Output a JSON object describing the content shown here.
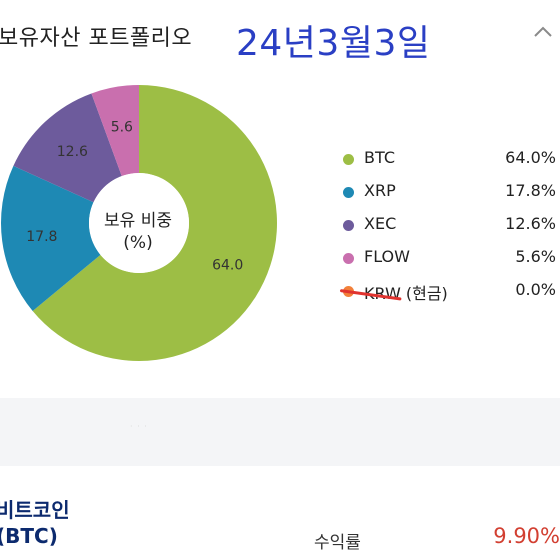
{
  "header": {
    "title": "보유자산 포트폴리오",
    "date_annotation": "24년3월3일",
    "collapse_icon": "chevron-up-icon"
  },
  "chart_data": {
    "type": "pie",
    "center_label": [
      "보유 비중",
      "(%)"
    ],
    "categories": [
      "BTC",
      "XRP",
      "XEC",
      "FLOW",
      "KRW (현금)"
    ],
    "values": [
      64.0,
      17.8,
      12.6,
      5.6,
      0.0
    ],
    "slice_labels": [
      "64.0",
      "17.8",
      "12.6",
      "5.6",
      ""
    ],
    "colors": [
      "#9dbe45",
      "#1e89b4",
      "#6d5b9c",
      "#c96fae",
      "#f2803a"
    ]
  },
  "legend": [
    {
      "name": "BTC",
      "pct": "64.0%",
      "color": "#9dbe45"
    },
    {
      "name": "XRP",
      "pct": "17.8%",
      "color": "#1e89b4"
    },
    {
      "name": "XEC",
      "pct": "12.6%",
      "color": "#6d5b9c"
    },
    {
      "name": "FLOW",
      "pct": "5.6%",
      "color": "#c96fae"
    },
    {
      "name": "KRW (현금)",
      "pct": "0.0%",
      "color": "#f2803a",
      "struck": true
    }
  ],
  "asset": {
    "name": "비트코인",
    "ticker": "(BTC)",
    "yield_label": "수익률",
    "yield_value": "9.90%"
  }
}
